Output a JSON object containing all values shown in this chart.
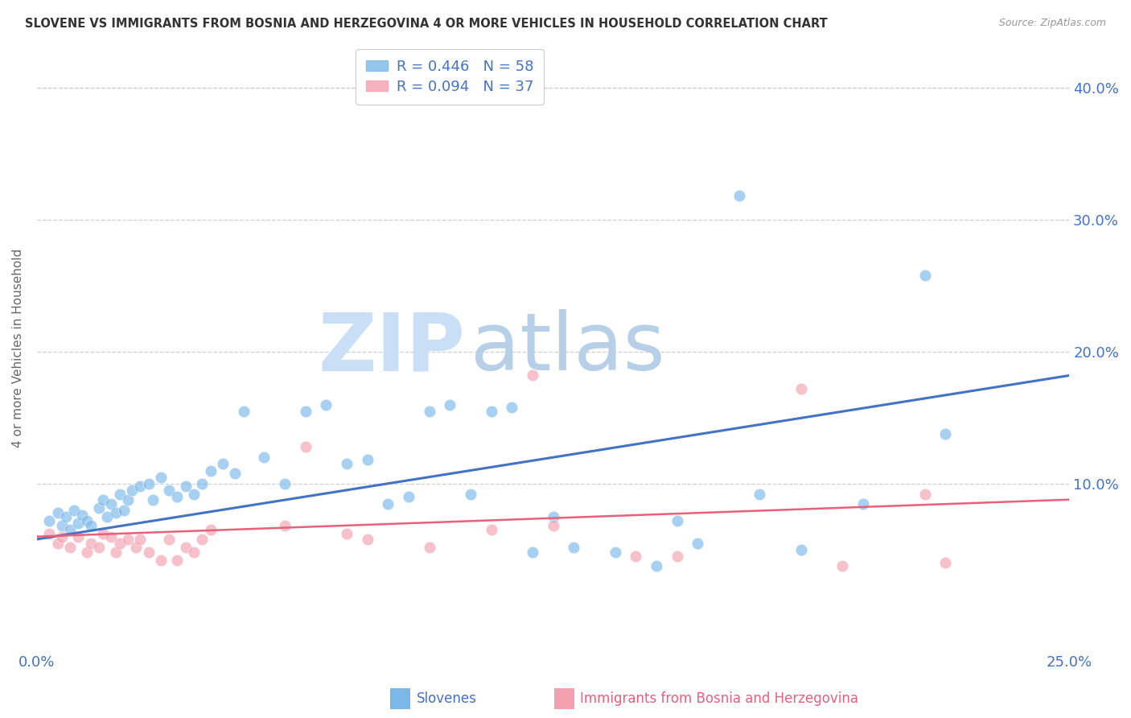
{
  "title": "SLOVENE VS IMMIGRANTS FROM BOSNIA AND HERZEGOVINA 4 OR MORE VEHICLES IN HOUSEHOLD CORRELATION CHART",
  "source": "Source: ZipAtlas.com",
  "ylabel": "4 or more Vehicles in Household",
  "y_ticks_right": [
    "40.0%",
    "30.0%",
    "20.0%",
    "10.0%"
  ],
  "y_ticks_values": [
    0.4,
    0.3,
    0.2,
    0.1
  ],
  "xlim": [
    0.0,
    0.25
  ],
  "ylim": [
    -0.025,
    0.43
  ],
  "legend_blue_R": "R = 0.446",
  "legend_blue_N": "N = 58",
  "legend_pink_R": "R = 0.094",
  "legend_pink_N": "N = 37",
  "blue_color": "#7ab8e8",
  "pink_color": "#f4a0b0",
  "trendline_blue_color": "#4472c4",
  "trendline_pink_color": "#e8607a",
  "legend_label_blue": "Slovenes",
  "legend_label_pink": "Immigrants from Bosnia and Herzegovina",
  "watermark_zip": "ZIP",
  "watermark_atlas": "atlas",
  "blue_scatter_x": [
    0.003,
    0.005,
    0.006,
    0.007,
    0.008,
    0.009,
    0.01,
    0.011,
    0.012,
    0.013,
    0.015,
    0.016,
    0.017,
    0.018,
    0.019,
    0.02,
    0.021,
    0.022,
    0.023,
    0.025,
    0.027,
    0.028,
    0.03,
    0.032,
    0.034,
    0.036,
    0.038,
    0.04,
    0.042,
    0.045,
    0.048,
    0.05,
    0.055,
    0.06,
    0.065,
    0.07,
    0.075,
    0.08,
    0.085,
    0.09,
    0.095,
    0.1,
    0.105,
    0.11,
    0.115,
    0.12,
    0.125,
    0.13,
    0.14,
    0.15,
    0.155,
    0.16,
    0.17,
    0.175,
    0.185,
    0.2,
    0.215,
    0.22
  ],
  "blue_scatter_y": [
    0.072,
    0.078,
    0.068,
    0.075,
    0.065,
    0.08,
    0.07,
    0.076,
    0.072,
    0.068,
    0.082,
    0.088,
    0.075,
    0.085,
    0.078,
    0.092,
    0.08,
    0.088,
    0.095,
    0.098,
    0.1,
    0.088,
    0.105,
    0.095,
    0.09,
    0.098,
    0.092,
    0.1,
    0.11,
    0.115,
    0.108,
    0.155,
    0.12,
    0.1,
    0.155,
    0.16,
    0.115,
    0.118,
    0.085,
    0.09,
    0.155,
    0.16,
    0.092,
    0.155,
    0.158,
    0.048,
    0.075,
    0.052,
    0.048,
    0.038,
    0.072,
    0.055,
    0.318,
    0.092,
    0.05,
    0.085,
    0.258,
    0.138
  ],
  "pink_scatter_x": [
    0.003,
    0.005,
    0.006,
    0.008,
    0.01,
    0.012,
    0.013,
    0.015,
    0.016,
    0.018,
    0.019,
    0.02,
    0.022,
    0.024,
    0.025,
    0.027,
    0.03,
    0.032,
    0.034,
    0.036,
    0.038,
    0.04,
    0.042,
    0.06,
    0.065,
    0.075,
    0.08,
    0.095,
    0.11,
    0.12,
    0.125,
    0.145,
    0.155,
    0.185,
    0.195,
    0.215,
    0.22
  ],
  "pink_scatter_y": [
    0.062,
    0.055,
    0.06,
    0.052,
    0.06,
    0.048,
    0.055,
    0.052,
    0.062,
    0.06,
    0.048,
    0.055,
    0.058,
    0.052,
    0.058,
    0.048,
    0.042,
    0.058,
    0.042,
    0.052,
    0.048,
    0.058,
    0.065,
    0.068,
    0.128,
    0.062,
    0.058,
    0.052,
    0.065,
    0.182,
    0.068,
    0.045,
    0.045,
    0.172,
    0.038,
    0.092,
    0.04
  ],
  "blue_trend_x": [
    0.0,
    0.25
  ],
  "blue_trend_y": [
    0.058,
    0.182
  ],
  "pink_trend_x": [
    0.0,
    0.25
  ],
  "pink_trend_y": [
    0.06,
    0.088
  ],
  "background_color": "#ffffff",
  "grid_color": "#d0d0d0"
}
